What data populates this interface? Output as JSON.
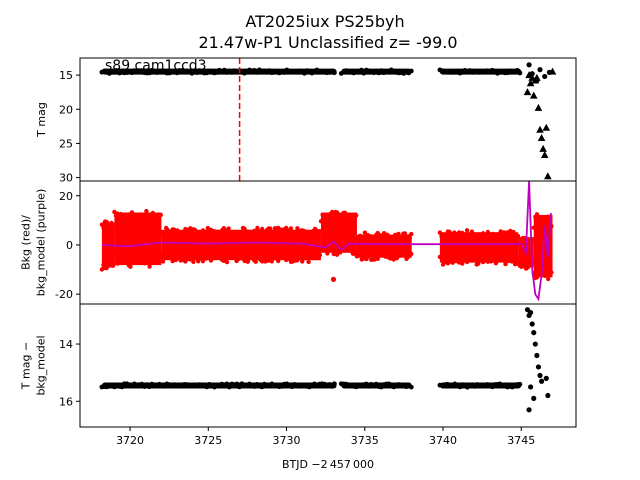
{
  "chart_data": [
    {
      "type": "scatter",
      "title": "AT2025iux  PS25byh",
      "subtitle": "21.47w-P1 Unclassified z= -99.0",
      "annotation": "s89 cam1ccd3",
      "ylabel": "T mag",
      "y_inverted": true,
      "ylim": [
        30.5,
        12.5
      ],
      "yticks": [
        15,
        20,
        25,
        30
      ],
      "xlim": [
        3716.8,
        3748.5
      ],
      "vline": {
        "x": 3727.0,
        "style": "dashed",
        "color": "#ff0000"
      },
      "series": [
        {
          "marker": "dot",
          "color": "#000000",
          "segments": [
            {
              "x_start": 3718.2,
              "x_end": 3733.2,
              "y": 14.5
            },
            {
              "x_start": 3733.5,
              "x_end": 3738.0,
              "y": 14.5
            },
            {
              "x_start": 3739.8,
              "x_end": 3745.0,
              "y": 14.5
            }
          ],
          "points": [
            {
              "x": 3745.5,
              "y": 13.5
            },
            {
              "x": 3745.7,
              "y": 14.8
            },
            {
              "x": 3746.0,
              "y": 15.8
            },
            {
              "x": 3746.2,
              "y": 14.2
            },
            {
              "x": 3746.5,
              "y": 15.2
            },
            {
              "x": 3746.8,
              "y": 14.6
            }
          ]
        },
        {
          "marker": "triangle",
          "color": "#000000",
          "points": [
            {
              "x": 3745.4,
              "y": 17.5
            },
            {
              "x": 3745.5,
              "y": 15.0
            },
            {
              "x": 3745.6,
              "y": 16.2
            },
            {
              "x": 3745.7,
              "y": 15.4
            },
            {
              "x": 3745.8,
              "y": 18.0
            },
            {
              "x": 3745.9,
              "y": 15.8
            },
            {
              "x": 3746.0,
              "y": 15.4
            },
            {
              "x": 3746.1,
              "y": 19.8
            },
            {
              "x": 3746.2,
              "y": 23.0
            },
            {
              "x": 3746.3,
              "y": 24.2
            },
            {
              "x": 3746.4,
              "y": 25.8
            },
            {
              "x": 3746.5,
              "y": 26.7
            },
            {
              "x": 3746.6,
              "y": 22.7
            },
            {
              "x": 3746.7,
              "y": 29.8
            },
            {
              "x": 3747.0,
              "y": 14.5
            }
          ]
        }
      ]
    },
    {
      "type": "line",
      "ylabel": "Bkg (red)/\nbkg_model (purple)",
      "ylim": [
        -24,
        26
      ],
      "yticks": [
        -20,
        0,
        20
      ],
      "xlim": [
        3716.8,
        3748.5
      ],
      "series": [
        {
          "marker": "dot",
          "color": "#ff0000",
          "segments": [
            {
              "x_start": 3718.2,
              "x_end": 3719.0,
              "y_low": -10,
              "y_high": 10
            },
            {
              "x_start": 3719.0,
              "x_end": 3722.0,
              "y_low": -9,
              "y_high": 14
            },
            {
              "x_start": 3722.0,
              "x_end": 3732.2,
              "y_low": -7,
              "y_high": 7
            },
            {
              "x_start": 3732.2,
              "x_end": 3734.5,
              "y_low": -4,
              "y_high": 14
            },
            {
              "x_start": 3734.5,
              "x_end": 3738.0,
              "y_low": -6,
              "y_high": 5
            },
            {
              "x_start": 3739.8,
              "x_end": 3744.8,
              "y_low": -8,
              "y_high": 6
            },
            {
              "x_start": 3744.8,
              "x_end": 3745.8,
              "y_low": -10,
              "y_high": 4
            },
            {
              "x_start": 3745.8,
              "x_end": 3747.0,
              "y_low": -14,
              "y_high": 13
            }
          ],
          "points": [
            {
              "x": 3733.0,
              "y": -14
            }
          ]
        },
        {
          "marker": "line",
          "color": "#bf00bf",
          "x": [
            3718.2,
            3720,
            3722,
            3725,
            3728,
            3731,
            3732.5,
            3733.0,
            3733.5,
            3734.0,
            3736,
            3738.0,
            3739.8,
            3742,
            3744,
            3745.0,
            3745.3,
            3745.5,
            3745.7,
            3745.9,
            3746.1,
            3746.3,
            3746.5,
            3746.7,
            3746.9
          ],
          "y": [
            0,
            -0.5,
            1,
            0.5,
            1,
            0.5,
            -1,
            1.5,
            -2,
            0.5,
            0.3,
            0.3,
            0.3,
            0.3,
            0.3,
            0.5,
            -3,
            26,
            -10,
            -20,
            -22,
            -12,
            8,
            -5,
            13
          ]
        }
      ]
    },
    {
      "type": "scatter",
      "ylabel": "T mag −\nbkg_model",
      "xlabel": "BTJD −2 457 000",
      "y_inverted": true,
      "ylim": [
        16.9,
        12.6
      ],
      "yticks": [
        14,
        16
      ],
      "xlim": [
        3716.8,
        3748.5
      ],
      "xticks": [
        3720,
        3725,
        3730,
        3735,
        3740,
        3745
      ],
      "series": [
        {
          "marker": "dot",
          "color": "#000000",
          "segments": [
            {
              "x_start": 3718.2,
              "x_end": 3733.2,
              "y": 15.45
            },
            {
              "x_start": 3733.5,
              "x_end": 3738.0,
              "y": 15.45
            },
            {
              "x_start": 3739.8,
              "x_end": 3745.0,
              "y": 15.45
            }
          ],
          "points": [
            {
              "x": 3745.4,
              "y": 12.8
            },
            {
              "x": 3745.5,
              "y": 13.0
            },
            {
              "x": 3745.6,
              "y": 12.9
            },
            {
              "x": 3745.7,
              "y": 13.3
            },
            {
              "x": 3745.8,
              "y": 13.6
            },
            {
              "x": 3745.9,
              "y": 14.0
            },
            {
              "x": 3746.0,
              "y": 14.4
            },
            {
              "x": 3746.1,
              "y": 14.8
            },
            {
              "x": 3746.2,
              "y": 15.1
            },
            {
              "x": 3746.3,
              "y": 15.3
            },
            {
              "x": 3745.6,
              "y": 15.5
            },
            {
              "x": 3745.8,
              "y": 15.9
            },
            {
              "x": 3745.5,
              "y": 16.3
            },
            {
              "x": 3746.6,
              "y": 15.2
            },
            {
              "x": 3746.7,
              "y": 15.8
            }
          ]
        }
      ]
    }
  ]
}
